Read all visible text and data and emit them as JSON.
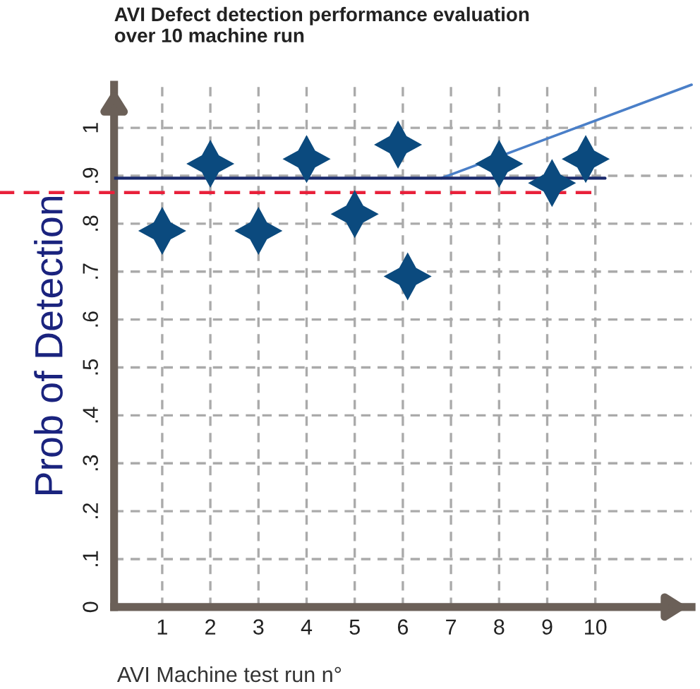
{
  "chart_data": {
    "type": "scatter",
    "title": "AVI Defect detection performance evaluation\nover 10 machine run",
    "xlabel": "AVI Machine test run n°",
    "ylabel": "Prob of Detection",
    "x": [
      1,
      2,
      3,
      4,
      5,
      5.9,
      6.1,
      8,
      9.1,
      9.8
    ],
    "series": [
      {
        "color": "#0b4a7e",
        "marker": "star",
        "values": [
          0.785,
          0.925,
          0.785,
          0.935,
          0.82,
          0.965,
          0.69,
          0.925,
          0.885,
          0.935
        ]
      },
      {
        "type": "line",
        "color": "#4a7fc8",
        "x": [
          6.8,
          12
        ],
        "marker": "none",
        "values": [
          0.895,
          1.09
        ]
      }
    ],
    "xlim": [
      0,
      12
    ],
    "ylim": [
      0,
      1.09
    ],
    "xticks": [
      1,
      2,
      3,
      4,
      5,
      6,
      7,
      8,
      9,
      10
    ],
    "yticks": [
      0,
      {
        "value": 0.1,
        "label": ".1"
      },
      {
        "value": 0.2,
        "label": ".2"
      },
      {
        "value": 0.3,
        "label": ".3"
      },
      {
        "value": 0.4,
        "label": ".4"
      },
      {
        "value": 0.5,
        "label": ".5"
      },
      {
        "value": 0.6,
        "label": ".6"
      },
      {
        "value": 0.7,
        "label": ".7"
      },
      {
        "value": 0.8,
        "label": ".8"
      },
      {
        "value": 0.9,
        "label": ".9"
      },
      {
        "value": 1,
        "label": "1"
      }
    ],
    "ref_lines": [
      {
        "axis": "y",
        "value": 0.895,
        "color": "#1a2a6c",
        "line_style": "solid"
      },
      {
        "axis": "y",
        "value": 0.865,
        "color": "#e8203a",
        "line_style": "dashed"
      }
    ],
    "grid": true
  }
}
